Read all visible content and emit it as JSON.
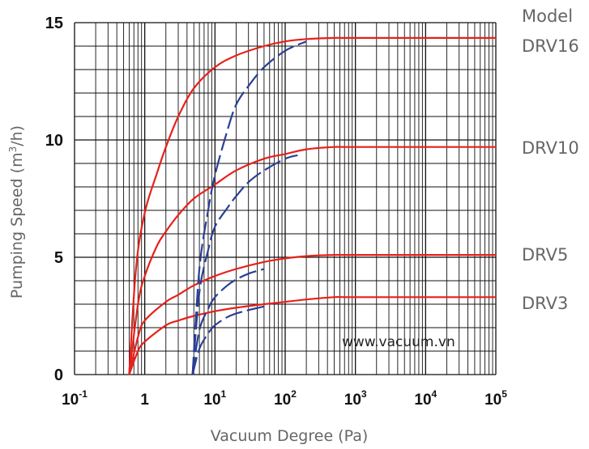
{
  "chart_data": {
    "type": "line",
    "title": "",
    "xlabel": "Vacuum Degree (Pa)",
    "ylabel": "Pumping Speed (m³/h)",
    "ylabel_base": "Pumping Speed (m",
    "ylabel_sup": "3",
    "ylabel_end": "/h)",
    "xscale": "log",
    "xlim": [
      0.1,
      100000
    ],
    "ylim": [
      0,
      15
    ],
    "grid": true,
    "x_tick_labels": [
      {
        "value": 0.1,
        "base": "10",
        "exp": "-1"
      },
      {
        "value": 1,
        "base": "1",
        "exp": ""
      },
      {
        "value": 10,
        "base": "10",
        "exp": "1"
      },
      {
        "value": 100,
        "base": "10",
        "exp": "2"
      },
      {
        "value": 1000,
        "base": "10",
        "exp": "3"
      },
      {
        "value": 10000,
        "base": "10",
        "exp": "4"
      },
      {
        "value": 100000,
        "base": "10",
        "exp": "5"
      }
    ],
    "y_ticks": [
      0,
      5,
      10,
      15
    ],
    "y_tick_labels": [
      "0",
      "5",
      "10",
      "15"
    ],
    "legend_title": "Model",
    "model_labels": [
      {
        "text": "DRV16",
        "value": 16
      },
      {
        "text": "DRV10",
        "value": 9.9
      },
      {
        "text": "DRV5",
        "value": 5.1
      },
      {
        "text": "DRV3",
        "value": 3.0
      }
    ],
    "watermark": "www.vacuum.vn",
    "colors": {
      "solid": "#e8201a",
      "dashed": "#2a3f94",
      "grid": "#111111"
    },
    "series": [
      {
        "style": "solid",
        "color": "#e8201a",
        "x": [
          0.6,
          0.75,
          1,
          1.5,
          2,
          3,
          5,
          10,
          20,
          50,
          100,
          200,
          500,
          1000,
          100000
        ],
        "y": [
          0,
          4.5,
          6.9,
          8.6,
          9.7,
          11.0,
          12.2,
          13.1,
          13.6,
          14.0,
          14.2,
          14.3,
          14.35,
          14.35,
          14.35
        ]
      },
      {
        "style": "solid",
        "color": "#e8201a",
        "x": [
          0.6,
          0.8,
          1,
          1.5,
          2,
          3,
          5,
          10,
          20,
          50,
          100,
          200,
          500,
          1000,
          100000
        ],
        "y": [
          0,
          3.0,
          4.2,
          5.5,
          6.1,
          6.8,
          7.5,
          8.1,
          8.7,
          9.2,
          9.4,
          9.6,
          9.7,
          9.7,
          9.7
        ]
      },
      {
        "style": "solid",
        "color": "#e8201a",
        "x": [
          0.6,
          0.8,
          1,
          2,
          3,
          5,
          10,
          20,
          50,
          100,
          200,
          500,
          1000,
          100000
        ],
        "y": [
          0,
          1.6,
          2.3,
          3.1,
          3.4,
          3.8,
          4.2,
          4.5,
          4.8,
          4.95,
          5.05,
          5.1,
          5.1,
          5.1
        ]
      },
      {
        "style": "solid",
        "color": "#e8201a",
        "x": [
          0.6,
          0.8,
          1,
          2,
          3,
          5,
          10,
          20,
          50,
          100,
          200,
          500,
          1000,
          100000
        ],
        "y": [
          0,
          1.0,
          1.4,
          2.1,
          2.3,
          2.5,
          2.7,
          2.85,
          3.0,
          3.1,
          3.2,
          3.3,
          3.3,
          3.3
        ]
      },
      {
        "style": "dashed",
        "color": "#2a3f94",
        "x": [
          4.8,
          6,
          8,
          10,
          15,
          20,
          30,
          50,
          100,
          200
        ],
        "y": [
          0,
          4.5,
          7.0,
          8.5,
          10.4,
          11.5,
          12.3,
          13.1,
          13.8,
          14.2
        ]
      },
      {
        "style": "dashed",
        "color": "#2a3f94",
        "x": [
          4.8,
          6,
          8,
          10,
          15,
          20,
          30,
          50,
          100,
          150
        ],
        "y": [
          0,
          3.5,
          5.3,
          6.3,
          7.1,
          7.6,
          8.2,
          8.7,
          9.2,
          9.35
        ]
      },
      {
        "style": "dashed",
        "color": "#2a3f94",
        "x": [
          4.8,
          6,
          8,
          10,
          15,
          20,
          30,
          50
        ],
        "y": [
          0,
          1.9,
          2.8,
          3.3,
          3.8,
          4.05,
          4.3,
          4.5
        ]
      },
      {
        "style": "dashed",
        "color": "#2a3f94",
        "x": [
          4.8,
          6,
          8,
          10,
          15,
          20,
          30,
          50
        ],
        "y": [
          0,
          1.1,
          1.75,
          2.1,
          2.45,
          2.6,
          2.75,
          2.9
        ]
      }
    ]
  }
}
